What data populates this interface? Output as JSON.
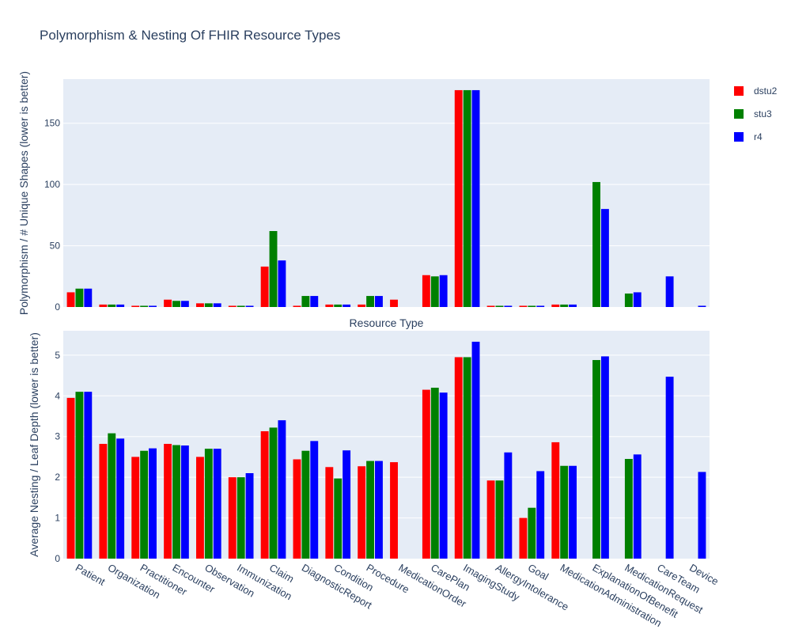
{
  "chart_data": [
    {
      "type": "bar",
      "title": "Polymorphism & Nesting Of FHIR Resource Types",
      "xlabel": "Resource Type",
      "ylabel": "Polymorphism / # Unique Shapes (lower is better)",
      "ylim": [
        0,
        186
      ],
      "yticks": [
        0,
        50,
        100,
        150
      ],
      "grid": true,
      "legend_position": "top-right",
      "categories": [
        "Patient",
        "Organization",
        "Practitioner",
        "Encounter",
        "Observation",
        "Immunization",
        "Claim",
        "DiagnosticReport",
        "Condition",
        "Procedure",
        "MedicationOrder",
        "CarePlan",
        "ImagingStudy",
        "AllergyIntolerance",
        "Goal",
        "MedicationAdministration",
        "ExplanationOfBenefit",
        "MedicationRequest",
        "CareTeam",
        "Device"
      ],
      "series": [
        {
          "name": "dstu2",
          "color": "#ff0000",
          "values": [
            12,
            2,
            1,
            6,
            3,
            1,
            33,
            1,
            2,
            2,
            6,
            26,
            177,
            1,
            1,
            2,
            null,
            null,
            null,
            null
          ]
        },
        {
          "name": "stu3",
          "color": "#008000",
          "values": [
            15,
            2,
            1,
            5,
            3,
            1,
            62,
            9,
            2,
            9,
            null,
            25,
            177,
            1,
            1,
            2,
            102,
            11,
            null,
            null
          ]
        },
        {
          "name": "r4",
          "color": "#0000ff",
          "values": [
            15,
            2,
            1,
            5,
            3,
            1,
            38,
            9,
            2,
            9,
            null,
            26,
            177,
            1,
            1,
            2,
            80,
            12,
            25,
            1
          ]
        }
      ]
    },
    {
      "type": "bar",
      "xlabel": "",
      "ylabel": "Average Nesting / Leaf Depth (lower is better)",
      "ylim": [
        0,
        5.6
      ],
      "yticks": [
        0,
        1,
        2,
        3,
        4,
        5
      ],
      "grid": true,
      "categories": [
        "Patient",
        "Organization",
        "Practitioner",
        "Encounter",
        "Observation",
        "Immunization",
        "Claim",
        "DiagnosticReport",
        "Condition",
        "Procedure",
        "MedicationOrder",
        "CarePlan",
        "ImagingStudy",
        "AllergyIntolerance",
        "Goal",
        "MedicationAdministration",
        "ExplanationOfBenefit",
        "MedicationRequest",
        "CareTeam",
        "Device"
      ],
      "series": [
        {
          "name": "dstu2",
          "color": "#ff0000",
          "values": [
            3.95,
            2.82,
            2.5,
            2.82,
            2.5,
            2.0,
            3.13,
            2.44,
            2.25,
            2.27,
            2.37,
            4.15,
            4.95,
            1.92,
            1.0,
            2.86,
            null,
            null,
            null,
            null
          ]
        },
        {
          "name": "stu3",
          "color": "#008000",
          "values": [
            4.1,
            3.08,
            2.65,
            2.79,
            2.7,
            2.0,
            3.22,
            2.65,
            1.97,
            2.4,
            null,
            4.2,
            4.95,
            1.92,
            1.25,
            2.28,
            4.88,
            2.45,
            null,
            null
          ]
        },
        {
          "name": "r4",
          "color": "#0000ff",
          "values": [
            4.1,
            2.95,
            2.71,
            2.78,
            2.7,
            2.1,
            3.4,
            2.89,
            2.66,
            2.4,
            null,
            4.08,
            5.33,
            2.61,
            2.15,
            2.28,
            4.97,
            2.56,
            4.47,
            2.13
          ]
        }
      ]
    }
  ]
}
